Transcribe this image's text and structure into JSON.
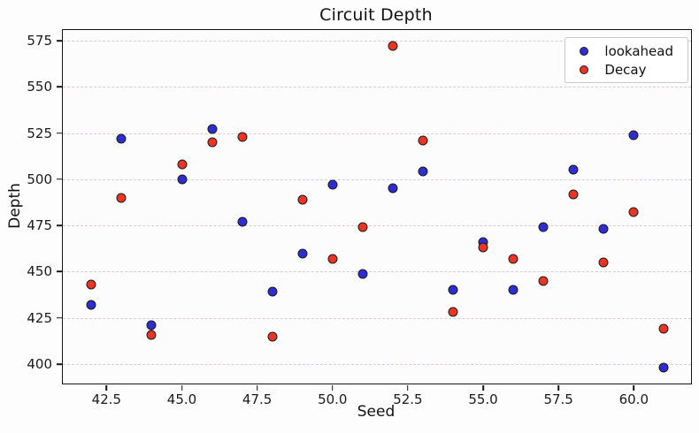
{
  "chart_data": {
    "type": "scatter",
    "title": "Circuit Depth",
    "xlabel": "Seed",
    "ylabel": "Depth",
    "xlim": [
      41.05,
      61.9
    ],
    "ylim": [
      389.5,
      580.7
    ],
    "xticks": [
      42.5,
      45.0,
      47.5,
      50.0,
      52.5,
      55.0,
      57.5,
      60.0
    ],
    "xtick_labels": [
      "42.5",
      "45.0",
      "47.5",
      "50.0",
      "52.5",
      "55.0",
      "57.5",
      "60.0"
    ],
    "yticks": [
      400,
      425,
      450,
      475,
      500,
      525,
      550,
      575
    ],
    "ytick_labels": [
      "400",
      "425",
      "450",
      "475",
      "500",
      "525",
      "550",
      "575"
    ],
    "grid": {
      "axis": "y",
      "style": "dashed",
      "color": "#d7cbd7"
    },
    "legend_position": "upper-right",
    "x": [
      42,
      43,
      44,
      45,
      46,
      47,
      48,
      49,
      50,
      51,
      52,
      53,
      54,
      55,
      56,
      57,
      58,
      59,
      60,
      61
    ],
    "series": [
      {
        "name": "lookahead",
        "color": "#2d2dd2",
        "edge_color": "#1c1c1c",
        "values": [
          432,
          522,
          421,
          500,
          527,
          477,
          439,
          460,
          497,
          449,
          495,
          504,
          440,
          466,
          440,
          474,
          505,
          473,
          524,
          398
        ]
      },
      {
        "name": "Decay",
        "color": "#ea3424",
        "edge_color": "#1c1c1c",
        "values": [
          443,
          490,
          416,
          508,
          520,
          523,
          415,
          489,
          457,
          474,
          572,
          521,
          428,
          463,
          457,
          445,
          492,
          455,
          482,
          419
        ]
      }
    ]
  }
}
